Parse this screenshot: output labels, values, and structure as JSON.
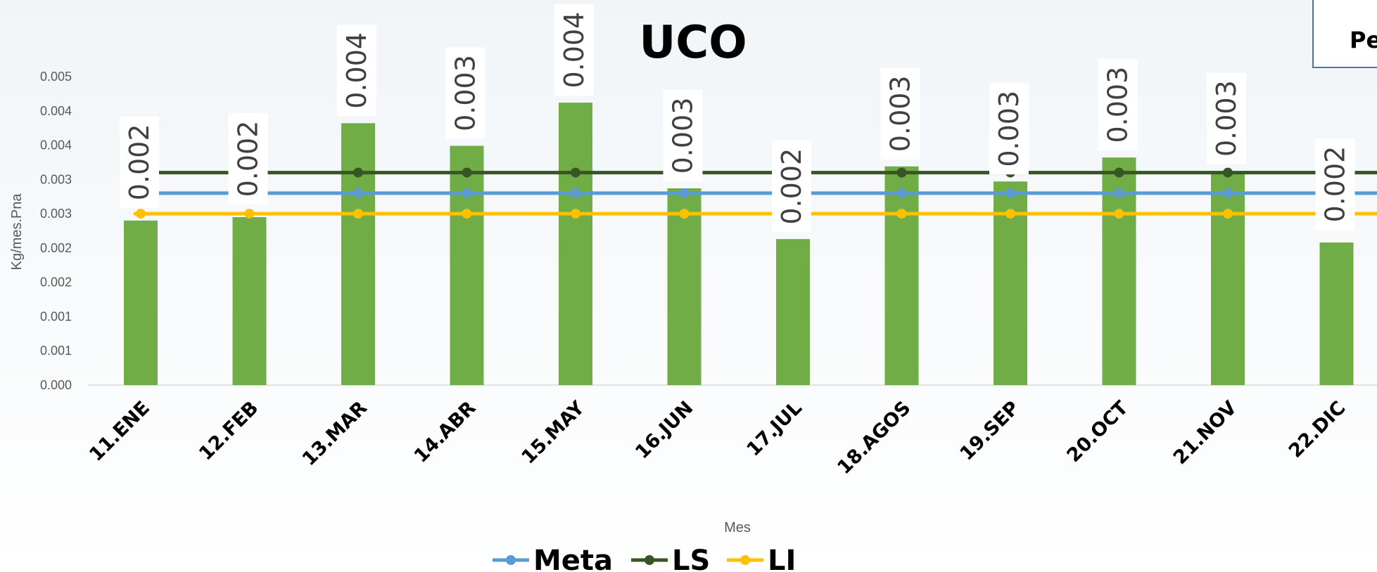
{
  "corner_label": "Pe",
  "chart_data": {
    "type": "bar",
    "title": "UCO",
    "xlabel": "Mes",
    "ylabel": "Kg/mes.Pna",
    "ylim": [
      0,
      0.0045
    ],
    "ytick_values": [
      0,
      0.0005,
      0.001,
      0.0015,
      0.002,
      0.0025,
      0.003,
      0.0035,
      0.004,
      0.0045
    ],
    "ytick_labels": [
      "0.000",
      "0.001",
      "0.001",
      "0.002",
      "0.002",
      "0.003",
      "0.003",
      "0.004",
      "0.004",
      "0.005"
    ],
    "categories": [
      "11.ENE",
      "12.FEB",
      "13.MAR",
      "14.ABR",
      "15.MAY",
      "16.JUN",
      "17.JUL",
      "18.AGOS",
      "19.SEP",
      "20.OCT",
      "21.NOV",
      "22.DIC"
    ],
    "bar_series": {
      "values": [
        0.0024,
        0.00245,
        0.00382,
        0.00349,
        0.00412,
        0.00287,
        0.00213,
        0.00319,
        0.00297,
        0.00332,
        0.00312,
        0.00208
      ],
      "data_labels": [
        "0.002",
        "0.002",
        "0.004",
        "0.003",
        "0.004",
        "0.003",
        "0.002",
        "0.003",
        "0.003",
        "0.003",
        "0.003",
        "0.002"
      ],
      "color": "#70ad47"
    },
    "series": [
      {
        "name": "Meta",
        "type": "line",
        "values": [
          0.0028,
          0.0028,
          0.0028,
          0.0028,
          0.0028,
          0.0028,
          0.0028,
          0.0028,
          0.0028,
          0.0028,
          0.0028,
          0.0028
        ],
        "color": "#5b9bd5"
      },
      {
        "name": "LS",
        "type": "line",
        "values": [
          0.0031,
          0.0031,
          0.0031,
          0.0031,
          0.0031,
          0.0031,
          0.0031,
          0.0031,
          0.0031,
          0.0031,
          0.0031,
          0.0031
        ],
        "color": "#375623"
      },
      {
        "name": "LI",
        "type": "line",
        "values": [
          0.0025,
          0.0025,
          0.0025,
          0.0025,
          0.0025,
          0.0025,
          0.0025,
          0.0025,
          0.0025,
          0.0025,
          0.0025,
          0.0025
        ],
        "color": "#ffc000"
      }
    ],
    "legend_position": "bottom",
    "grid": false
  }
}
